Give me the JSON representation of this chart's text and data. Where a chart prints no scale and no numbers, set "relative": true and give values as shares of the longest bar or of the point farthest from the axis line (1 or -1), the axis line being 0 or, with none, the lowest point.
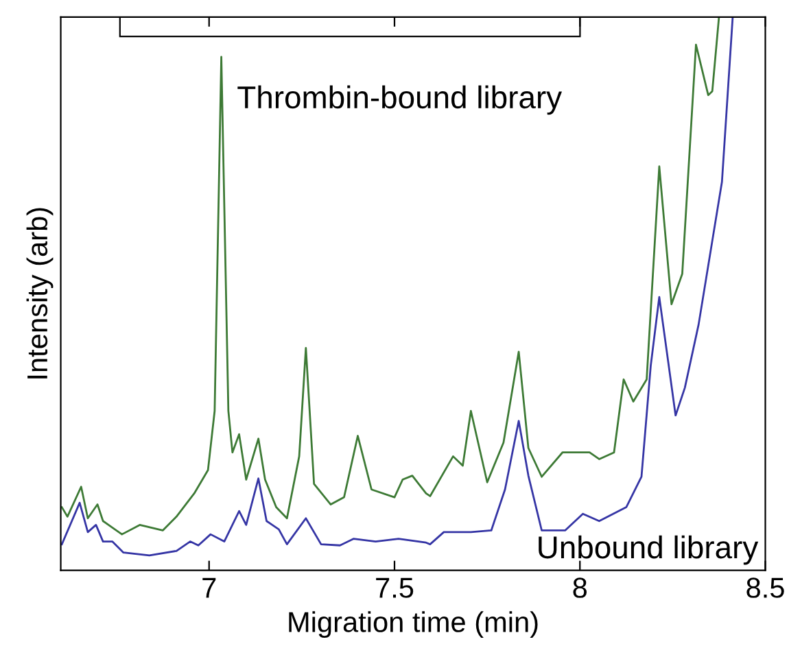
{
  "chart_data": {
    "type": "line",
    "xlabel": "Migration time (min)",
    "ylabel": "Intensity (arb)",
    "relative": true,
    "xlim": [
      6.6,
      8.5
    ],
    "xticks": [
      7,
      7.5,
      8,
      8.5
    ],
    "legend": false,
    "grid": false,
    "series": [
      {
        "name": "Thrombin-bound library",
        "color": "#3d7a35",
        "x": [
          6.603,
          6.618,
          6.655,
          6.673,
          6.699,
          6.714,
          6.765,
          6.813,
          6.875,
          6.912,
          6.96,
          6.997,
          7.015,
          7.033,
          7.052,
          7.063,
          7.081,
          7.1,
          7.133,
          7.151,
          7.181,
          7.21,
          7.243,
          7.261,
          7.283,
          7.328,
          7.364,
          7.401,
          7.438,
          7.5,
          7.522,
          7.548,
          7.585,
          7.596,
          7.658,
          7.684,
          7.706,
          7.75,
          7.794,
          7.835,
          7.861,
          7.897,
          7.953,
          8.026,
          8.052,
          8.092,
          8.118,
          8.144,
          8.18,
          8.214,
          8.247,
          8.276,
          8.313,
          8.346,
          8.357,
          8.375
        ],
        "values": [
          0.114,
          0.097,
          0.151,
          0.094,
          0.119,
          0.089,
          0.065,
          0.082,
          0.072,
          0.097,
          0.139,
          0.181,
          0.288,
          0.928,
          0.288,
          0.213,
          0.246,
          0.164,
          0.238,
          0.164,
          0.114,
          0.094,
          0.206,
          0.402,
          0.156,
          0.119,
          0.132,
          0.243,
          0.146,
          0.132,
          0.164,
          0.171,
          0.139,
          0.134,
          0.206,
          0.189,
          0.288,
          0.159,
          0.231,
          0.395,
          0.221,
          0.169,
          0.213,
          0.213,
          0.201,
          0.213,
          0.345,
          0.305,
          0.345,
          0.73,
          0.481,
          0.536,
          0.95,
          0.859,
          0.866,
          1.0
        ]
      },
      {
        "name": "Unbound library",
        "color": "#3535a5",
        "x": [
          6.603,
          6.651,
          6.673,
          6.695,
          6.714,
          6.739,
          6.769,
          6.839,
          6.912,
          6.949,
          6.971,
          7.004,
          7.041,
          7.081,
          7.1,
          7.133,
          7.155,
          7.188,
          7.21,
          7.261,
          7.302,
          7.353,
          7.39,
          7.449,
          7.511,
          7.585,
          7.596,
          7.633,
          7.706,
          7.761,
          7.798,
          7.835,
          7.861,
          7.897,
          7.96,
          8.008,
          8.052,
          8.125,
          8.166,
          8.191,
          8.214,
          8.258,
          8.283,
          8.32,
          8.383,
          8.412
        ],
        "values": [
          0.047,
          0.122,
          0.069,
          0.082,
          0.052,
          0.052,
          0.032,
          0.027,
          0.035,
          0.052,
          0.045,
          0.065,
          0.052,
          0.107,
          0.082,
          0.166,
          0.089,
          0.074,
          0.047,
          0.094,
          0.047,
          0.045,
          0.057,
          0.052,
          0.057,
          0.05,
          0.047,
          0.069,
          0.069,
          0.072,
          0.146,
          0.27,
          0.171,
          0.072,
          0.072,
          0.102,
          0.089,
          0.114,
          0.169,
          0.37,
          0.494,
          0.28,
          0.33,
          0.444,
          0.702,
          1.0
        ]
      }
    ]
  }
}
